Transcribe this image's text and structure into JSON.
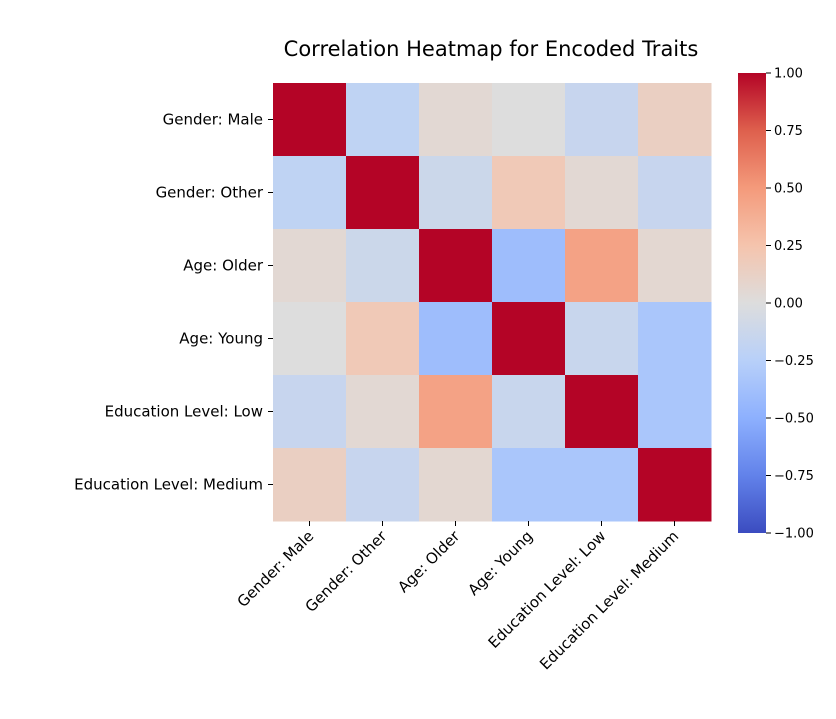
{
  "chart_data": {
    "type": "heatmap",
    "title": "Correlation Heatmap for Encoded Traits",
    "xlabel": "",
    "ylabel": "",
    "row_labels": [
      "Gender: Male",
      "Gender: Other",
      "Age: Older",
      "Age: Young",
      "Education Level: Low",
      "Education Level: Medium"
    ],
    "col_labels": [
      "Gender: Male",
      "Gender: Other",
      "Age: Older",
      "Age: Young",
      "Education Level: Low",
      "Education Level: Medium"
    ],
    "values": [
      [
        1.0,
        -0.2,
        0.05,
        0.0,
        -0.15,
        0.14
      ],
      [
        -0.2,
        1.0,
        -0.12,
        0.2,
        0.05,
        -0.15
      ],
      [
        0.05,
        -0.12,
        1.0,
        -0.4,
        0.45,
        0.06
      ],
      [
        0.0,
        0.2,
        -0.4,
        1.0,
        -0.14,
        -0.33
      ],
      [
        -0.15,
        0.05,
        0.45,
        -0.14,
        1.0,
        -0.33
      ],
      [
        0.14,
        -0.15,
        0.06,
        -0.33,
        -0.33,
        1.0
      ]
    ],
    "colormap": "coolwarm",
    "vmin": -1.0,
    "vmax": 1.0,
    "colorbar_ticks": [
      "1.00",
      "0.75",
      "0.50",
      "0.25",
      "0.00",
      "−0.25",
      "−0.50",
      "−0.75",
      "−1.00"
    ],
    "colorbar_tick_values": [
      1.0,
      0.75,
      0.5,
      0.25,
      0.0,
      -0.25,
      -0.5,
      -0.75,
      -1.0
    ],
    "legend_placement": "right",
    "grid": false
  }
}
